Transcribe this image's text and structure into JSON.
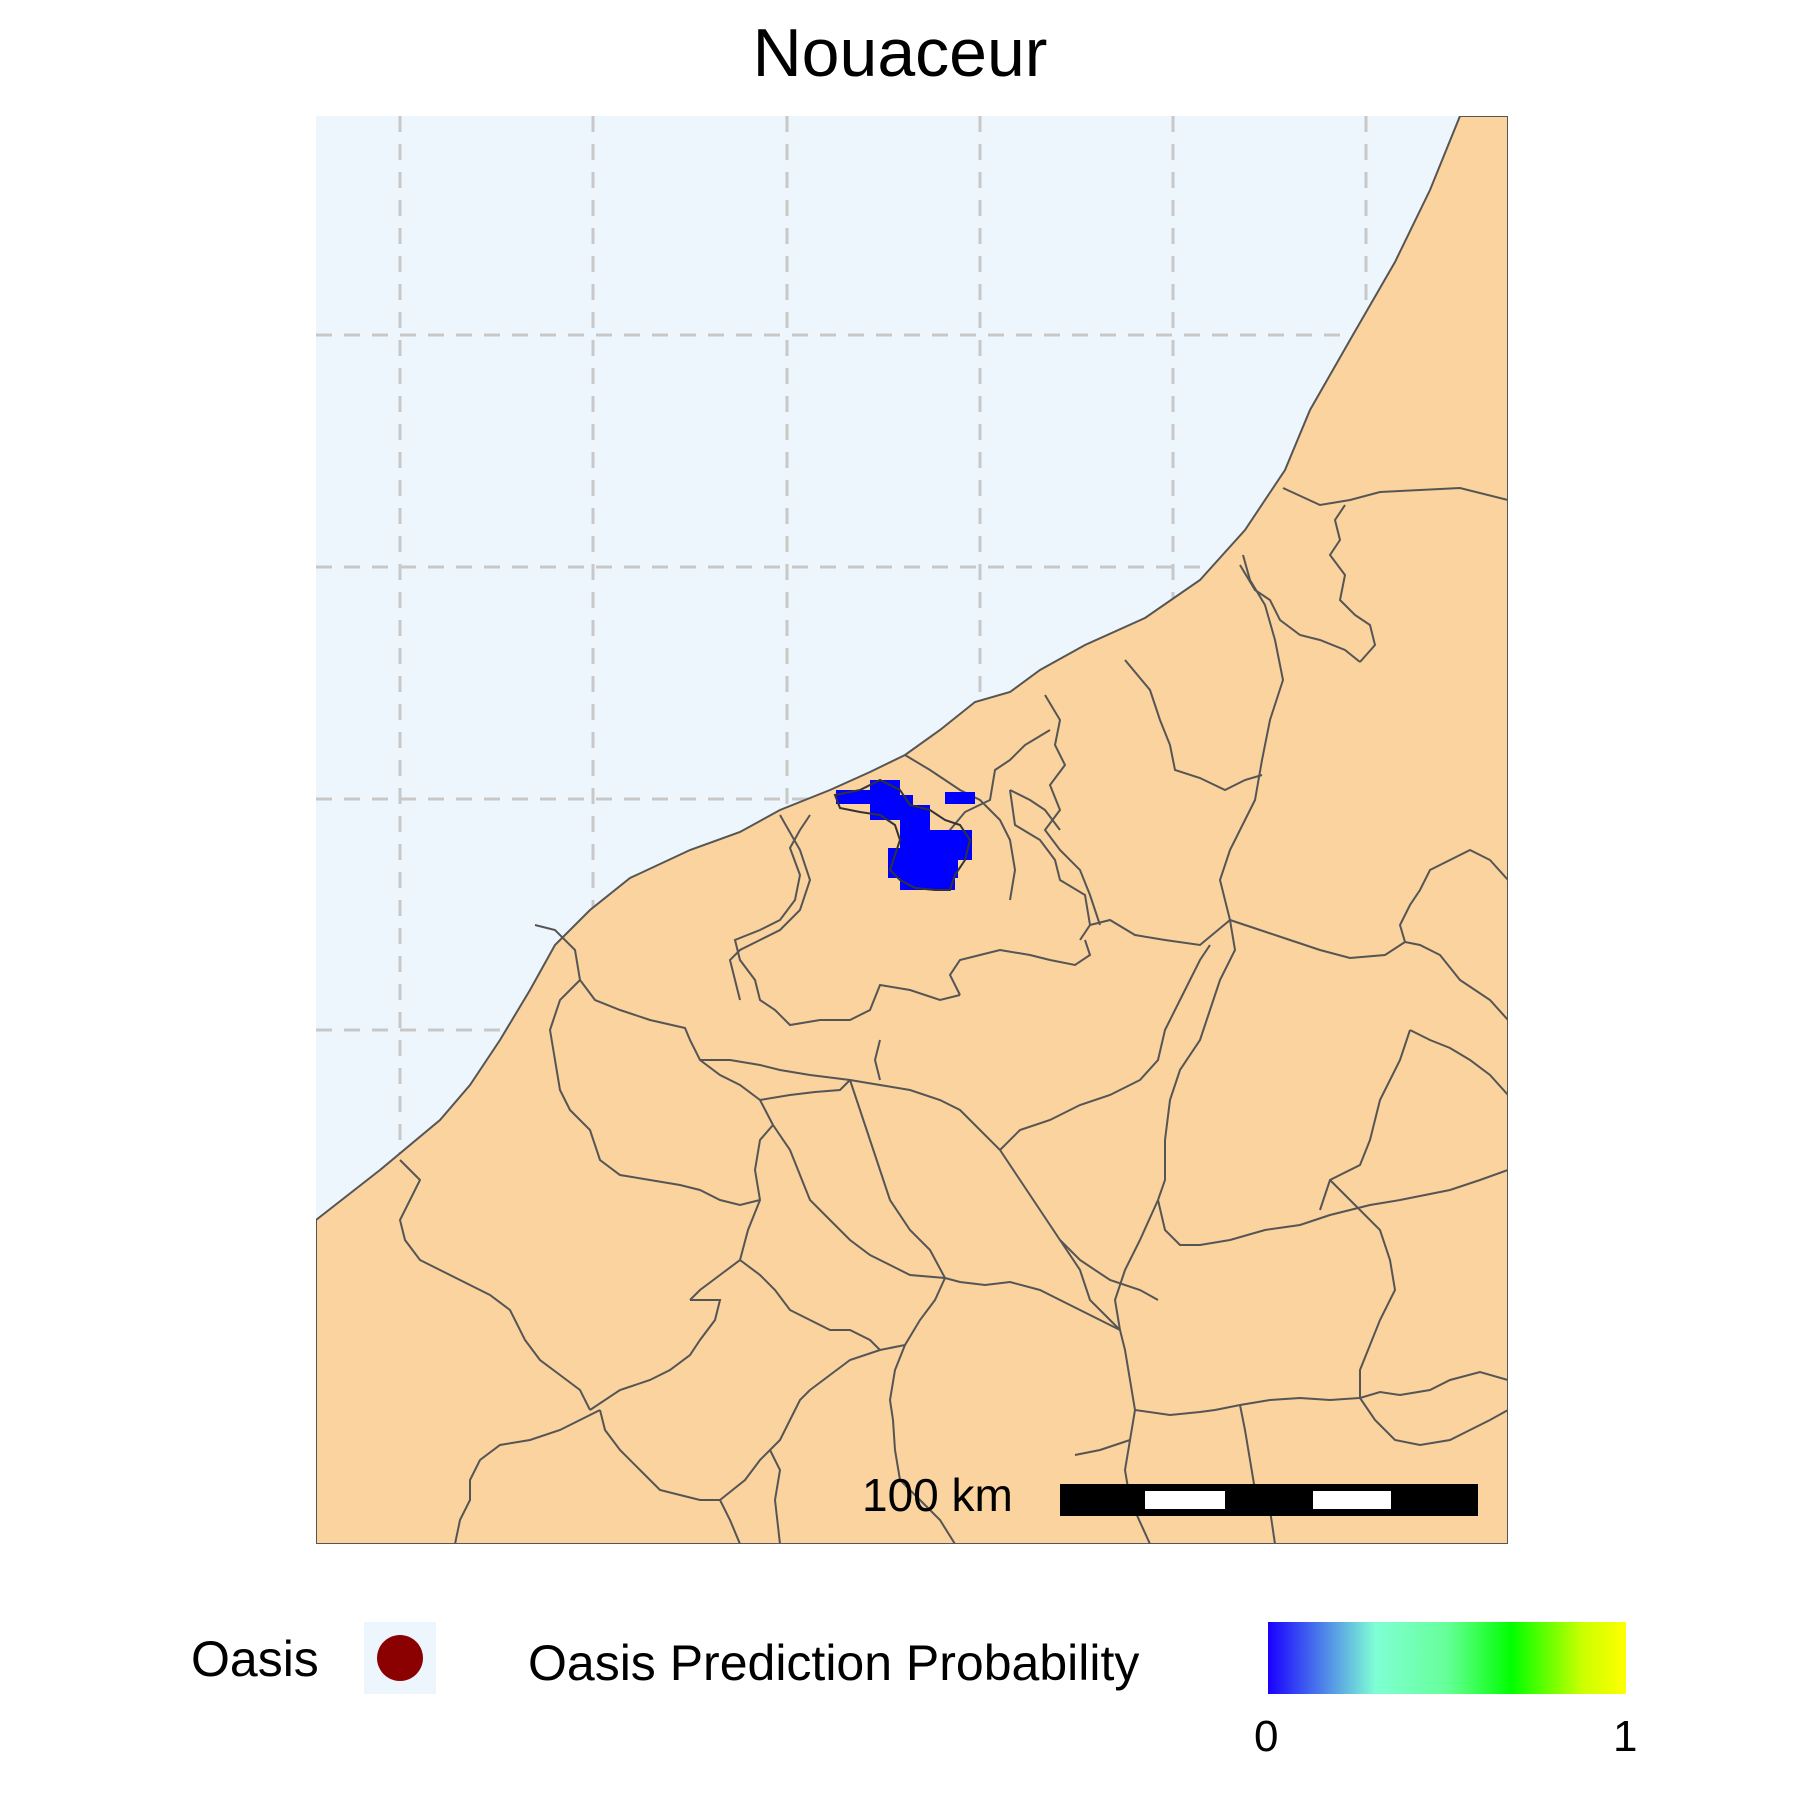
{
  "title": "Nouaceur",
  "colors": {
    "sea": "#eef6fd",
    "land": "#fad39e",
    "boundary": "#555555",
    "grid": "#c8c8c8",
    "prediction_fill": "#0000ff",
    "oasis_point": "#8b0000"
  },
  "scalebar": {
    "label": "100 km"
  },
  "legend": {
    "oasis_label": "Oasis",
    "probability_label": "Oasis Prediction Probability",
    "probability_min": "0",
    "probability_max": "1",
    "probability_colors": [
      "#1a00ff",
      "#7fffd4",
      "#00ff00",
      "#ffff00"
    ]
  }
}
